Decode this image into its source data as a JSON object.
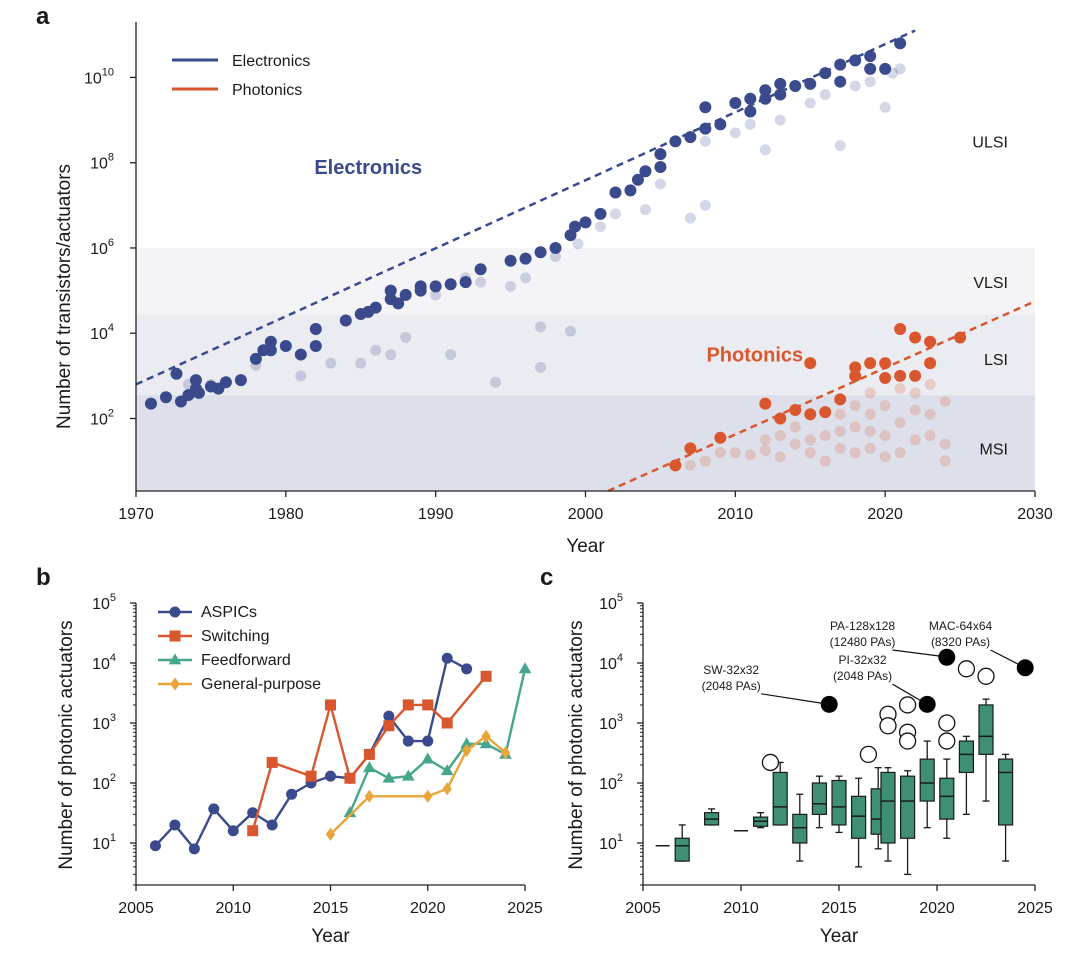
{
  "chart_data": [
    {
      "panel": "a",
      "type": "scatter",
      "xlabel": "Year",
      "ylabel": "Number of transistors/actuators",
      "xlim": [
        1970,
        2030
      ],
      "ylim_log10": [
        0.3,
        11.3
      ],
      "xticks": [
        "1970",
        "1980",
        "1990",
        "2000",
        "2010",
        "2020",
        "2030"
      ],
      "yticks": [
        {
          "exp": 2,
          "label": "2"
        },
        {
          "exp": 4,
          "label": "4"
        },
        {
          "exp": 6,
          "label": "6"
        },
        {
          "exp": 8,
          "label": "8"
        },
        {
          "exp": 10,
          "label": "10"
        }
      ],
      "ytick_base": "10",
      "legend": [
        "Electronics",
        "Photonics"
      ],
      "legend_position": "top-left",
      "colors": {
        "electronics": "#3a4a8c",
        "photonics": "#d9572e",
        "band_msi": "#dde0ea",
        "band_lsi": "#ebecf1",
        "band_vlsi": "#f4f4f6"
      },
      "bands": [
        {
          "name": "MSI",
          "ymin_log10": 0.3,
          "ymax_log10": 2.55
        },
        {
          "name": "LSI",
          "ymin_log10": 2.55,
          "ymax_log10": 4.45
        },
        {
          "name": "VLSI",
          "ymin_log10": 4.45,
          "ymax_log10": 6.0
        },
        {
          "name": "ULSI",
          "ymin_log10": 6.0,
          "ymax_log10": 11.3
        }
      ],
      "band_labels": [
        {
          "name": "ULSI",
          "y_log10": 8.5
        },
        {
          "name": "VLSI",
          "y_log10": 5.2
        },
        {
          "name": "LSI",
          "y_log10": 3.4
        },
        {
          "name": "MSI",
          "y_log10": 1.3
        }
      ],
      "series_labels": [
        {
          "text": "Electronics",
          "x": 1985.5,
          "y_log10": 7.9,
          "series": "electronics"
        },
        {
          "text": "Photonics",
          "x": 2011.3,
          "y_log10": 3.5,
          "series": "photonics"
        }
      ],
      "trend_electronics": {
        "x": [
          1970,
          2022
        ],
        "y_log10": [
          2.8,
          11.1
        ]
      },
      "trend_photonics": {
        "x": [
          2001.5,
          2030
        ],
        "y_log10": [
          0.3,
          4.75
        ]
      },
      "electronics_points": [
        [
          1971,
          2.35
        ],
        [
          1972,
          2.5
        ],
        [
          1972.7,
          3.05
        ],
        [
          1973,
          2.4
        ],
        [
          1973.5,
          2.55
        ],
        [
          1974,
          2.7
        ],
        [
          1974,
          2.9
        ],
        [
          1974.2,
          2.6
        ],
        [
          1975,
          2.75
        ],
        [
          1975.5,
          2.7
        ],
        [
          1976,
          2.85
        ],
        [
          1977,
          2.9
        ],
        [
          1978,
          3.4
        ],
        [
          1978.5,
          3.6
        ],
        [
          1979,
          3.8
        ],
        [
          1979,
          3.6
        ],
        [
          1980,
          3.7
        ],
        [
          1981,
          3.5
        ],
        [
          1982,
          3.7
        ],
        [
          1982,
          4.1
        ],
        [
          1984,
          4.3
        ],
        [
          1985,
          4.45
        ],
        [
          1985.5,
          4.5
        ],
        [
          1986,
          4.6
        ],
        [
          1987,
          4.8
        ],
        [
          1987,
          5.0
        ],
        [
          1987.5,
          4.7
        ],
        [
          1988,
          4.9
        ],
        [
          1989,
          5.1
        ],
        [
          1989,
          5.0
        ],
        [
          1990,
          5.1
        ],
        [
          1991,
          5.15
        ],
        [
          1992,
          5.2
        ],
        [
          1993,
          5.5
        ],
        [
          1995,
          5.7
        ],
        [
          1996,
          5.75
        ],
        [
          1997,
          5.9
        ],
        [
          1998,
          6.0
        ],
        [
          1999,
          6.3
        ],
        [
          1999.3,
          6.5
        ],
        [
          2000,
          6.6
        ],
        [
          2001,
          6.8
        ],
        [
          2002,
          7.3
        ],
        [
          2003,
          7.35
        ],
        [
          2003.5,
          7.6
        ],
        [
          2004,
          7.8
        ],
        [
          2005,
          8.2
        ],
        [
          2005,
          7.9
        ],
        [
          2006,
          8.5
        ],
        [
          2007,
          8.6
        ],
        [
          2008,
          8.8
        ],
        [
          2008,
          9.3
        ],
        [
          2009,
          8.9
        ],
        [
          2010,
          9.4
        ],
        [
          2011,
          9.5
        ],
        [
          2011,
          9.2
        ],
        [
          2012,
          9.5
        ],
        [
          2012,
          9.7
        ],
        [
          2013,
          9.6
        ],
        [
          2013,
          9.85
        ],
        [
          2014,
          9.8
        ],
        [
          2015,
          9.85
        ],
        [
          2016,
          10.1
        ],
        [
          2017,
          10.3
        ],
        [
          2017,
          9.9
        ],
        [
          2018,
          10.4
        ],
        [
          2019,
          10.5
        ],
        [
          2019,
          10.2
        ],
        [
          2020,
          10.2
        ],
        [
          2021,
          10.8
        ]
      ],
      "electronics_faint_points": [
        [
          1973.5,
          2.8
        ],
        [
          1975,
          2.8
        ],
        [
          1978,
          3.25
        ],
        [
          1981,
          3.0
        ],
        [
          1983,
          3.3
        ],
        [
          1985,
          3.3
        ],
        [
          1986,
          3.6
        ],
        [
          1987,
          3.5
        ],
        [
          1988,
          3.9
        ],
        [
          1990,
          4.9
        ],
        [
          1991,
          3.5
        ],
        [
          1992,
          5.3
        ],
        [
          1993,
          5.2
        ],
        [
          1994,
          2.85
        ],
        [
          1995,
          5.1
        ],
        [
          1996,
          5.3
        ],
        [
          1997,
          4.15
        ],
        [
          1997,
          3.2
        ],
        [
          1998,
          5.8
        ],
        [
          1999,
          4.05
        ],
        [
          1999.5,
          6.1
        ],
        [
          2001,
          6.5
        ],
        [
          2002,
          6.8
        ],
        [
          2004,
          6.9
        ],
        [
          2005,
          7.5
        ],
        [
          2007,
          6.7
        ],
        [
          2008,
          7.0
        ],
        [
          2008,
          8.5
        ],
        [
          2010,
          8.7
        ],
        [
          2011,
          8.9
        ],
        [
          2012,
          8.3
        ],
        [
          2013,
          9.0
        ],
        [
          2015,
          9.4
        ],
        [
          2016,
          9.6
        ],
        [
          2017,
          8.4
        ],
        [
          2018,
          9.8
        ],
        [
          2019,
          9.9
        ],
        [
          2020,
          9.3
        ],
        [
          2020.5,
          10.1
        ],
        [
          2021,
          10.2
        ]
      ],
      "photonics_points": [
        [
          2006,
          0.9
        ],
        [
          2007,
          1.3
        ],
        [
          2009,
          1.55
        ],
        [
          2012,
          2.35
        ],
        [
          2013,
          2.0
        ],
        [
          2014,
          2.2
        ],
        [
          2015,
          2.1
        ],
        [
          2015,
          3.3
        ],
        [
          2016,
          2.15
        ],
        [
          2017,
          2.45
        ],
        [
          2018,
          3.0
        ],
        [
          2018,
          3.2
        ],
        [
          2019,
          3.3
        ],
        [
          2020,
          3.3
        ],
        [
          2020,
          2.95
        ],
        [
          2021,
          3.0
        ],
        [
          2021,
          4.1
        ],
        [
          2022,
          3.9
        ],
        [
          2022,
          3.0
        ],
        [
          2023,
          3.8
        ],
        [
          2023,
          3.3
        ],
        [
          2025,
          3.9
        ]
      ],
      "photonics_faint_points": [
        [
          2007,
          0.9
        ],
        [
          2008,
          1.0
        ],
        [
          2009,
          1.2
        ],
        [
          2010,
          1.2
        ],
        [
          2011,
          1.15
        ],
        [
          2012,
          1.25
        ],
        [
          2012,
          1.5
        ],
        [
          2013,
          1.1
        ],
        [
          2013,
          1.6
        ],
        [
          2014,
          1.4
        ],
        [
          2014,
          1.8
        ],
        [
          2015,
          1.5
        ],
        [
          2015,
          1.2
        ],
        [
          2016,
          1.0
        ],
        [
          2016,
          1.6
        ],
        [
          2017,
          1.3
        ],
        [
          2017,
          1.7
        ],
        [
          2017,
          2.1
        ],
        [
          2018,
          1.2
        ],
        [
          2018,
          1.8
        ],
        [
          2018,
          2.3
        ],
        [
          2019,
          1.3
        ],
        [
          2019,
          1.7
        ],
        [
          2019,
          2.1
        ],
        [
          2019,
          2.6
        ],
        [
          2020,
          1.1
        ],
        [
          2020,
          1.6
        ],
        [
          2020,
          2.3
        ],
        [
          2021,
          1.2
        ],
        [
          2021,
          1.9
        ],
        [
          2021,
          2.7
        ],
        [
          2022,
          1.5
        ],
        [
          2022,
          2.2
        ],
        [
          2022,
          2.6
        ],
        [
          2023,
          1.6
        ],
        [
          2023,
          2.1
        ],
        [
          2023,
          2.8
        ],
        [
          2024,
          1.0
        ],
        [
          2024,
          1.4
        ],
        [
          2024,
          2.4
        ]
      ]
    },
    {
      "panel": "b",
      "type": "line",
      "xlabel": "Year",
      "ylabel": "Number of photonic actuators",
      "xlim": [
        2005,
        2025
      ],
      "ylim_log10": [
        0.3,
        5
      ],
      "xticks": [
        "2005",
        "2010",
        "2015",
        "2020",
        "2025"
      ],
      "yticks": [
        {
          "exp": 1,
          "label": "1"
        },
        {
          "exp": 2,
          "label": "2"
        },
        {
          "exp": 3,
          "label": "3"
        },
        {
          "exp": 4,
          "label": "4"
        },
        {
          "exp": 5,
          "label": "5"
        }
      ],
      "ytick_base": "10",
      "legend_position": "top-left",
      "series": [
        {
          "name": "ASPICs",
          "color": "#3a4a8c",
          "marker": "circle",
          "x": [
            2006,
            2007,
            2008,
            2009,
            2010,
            2011,
            2012,
            2013,
            2014,
            2015,
            2016,
            2017,
            2018,
            2019,
            2020,
            2021,
            2022
          ],
          "y": [
            9,
            20,
            8,
            37,
            16,
            32,
            20,
            65,
            100,
            130,
            120,
            300,
            1300,
            500,
            500,
            12000,
            8000
          ]
        },
        {
          "name": "Switching",
          "color": "#d9572e",
          "marker": "square",
          "x": [
            2011,
            2012,
            2014,
            2015,
            2016,
            2017,
            2018,
            2019,
            2020,
            2021,
            2023
          ],
          "y": [
            16,
            220,
            130,
            2000,
            120,
            300,
            900,
            2000,
            2000,
            1000,
            6000
          ]
        },
        {
          "name": "Feedforward",
          "color": "#46a68c",
          "marker": "triangle",
          "x": [
            2016,
            2017,
            2018,
            2019,
            2020,
            2021,
            2022,
            2023,
            2024,
            2025
          ],
          "y": [
            32,
            180,
            120,
            130,
            250,
            160,
            450,
            450,
            300,
            8000
          ]
        },
        {
          "name": "General-purpose",
          "color": "#e9a53a",
          "marker": "diamond",
          "x": [
            2015,
            2017,
            2020,
            2021,
            2022,
            2023,
            2024
          ],
          "y": [
            14,
            60,
            60,
            80,
            350,
            600,
            320
          ]
        }
      ]
    },
    {
      "panel": "c",
      "type": "box",
      "xlabel": "Year",
      "ylabel": "Number of photonic actuators",
      "xlim": [
        2005,
        2025
      ],
      "ylim_log10": [
        0.3,
        5
      ],
      "xticks": [
        "2005",
        "2010",
        "2015",
        "2020",
        "2025"
      ],
      "yticks": [
        {
          "exp": 1,
          "label": "1"
        },
        {
          "exp": 2,
          "label": "2"
        },
        {
          "exp": 3,
          "label": "3"
        },
        {
          "exp": 4,
          "label": "4"
        },
        {
          "exp": 5,
          "label": "5"
        }
      ],
      "ytick_base": "10",
      "colors": {
        "box": "#3f8f77",
        "edge": "#1a1a1a"
      },
      "boxes": [
        {
          "x": 2006,
          "min": 9,
          "q1": 9,
          "med": 9,
          "q3": 9,
          "max": 9
        },
        {
          "x": 2007,
          "min": 5,
          "q1": 5,
          "med": 9,
          "q3": 12,
          "max": 20
        },
        {
          "x": 2008.5,
          "min": 20,
          "q1": 20,
          "med": 25,
          "q3": 32,
          "max": 37
        },
        {
          "x": 2010,
          "min": 16,
          "q1": 16,
          "med": 16,
          "q3": 16,
          "max": 16
        },
        {
          "x": 2011,
          "min": 18,
          "q1": 19,
          "med": 23,
          "q3": 27,
          "max": 32
        },
        {
          "x": 2012,
          "min": 20,
          "q1": 20,
          "med": 40,
          "q3": 150,
          "max": 220
        },
        {
          "x": 2013,
          "min": 5,
          "q1": 10,
          "med": 18,
          "q3": 30,
          "max": 65
        },
        {
          "x": 2014,
          "min": 18,
          "q1": 30,
          "med": 45,
          "q3": 100,
          "max": 130
        },
        {
          "x": 2015,
          "min": 15,
          "q1": 20,
          "med": 40,
          "q3": 110,
          "max": 130
        },
        {
          "x": 2016,
          "min": 4,
          "q1": 12,
          "med": 28,
          "q3": 60,
          "max": 120
        },
        {
          "x": 2017,
          "min": 8,
          "q1": 14,
          "med": 25,
          "q3": 80,
          "max": 180
        },
        {
          "x": 2017.5,
          "min": 5,
          "q1": 10,
          "med": 50,
          "q3": 150,
          "max": 180
        },
        {
          "x": 2018.5,
          "min": 3,
          "q1": 12,
          "med": 50,
          "q3": 130,
          "max": 160
        },
        {
          "x": 2019.5,
          "min": 18,
          "q1": 50,
          "med": 100,
          "q3": 250,
          "max": 500
        },
        {
          "x": 2020.5,
          "min": 12,
          "q1": 25,
          "med": 60,
          "q3": 120,
          "max": 250
        },
        {
          "x": 2021.5,
          "min": 30,
          "q1": 150,
          "med": 300,
          "q3": 500,
          "max": 600
        },
        {
          "x": 2022.5,
          "min": 50,
          "q1": 300,
          "med": 600,
          "q3": 2000,
          "max": 2500
        },
        {
          "x": 2023.5,
          "min": 5,
          "q1": 20,
          "med": 150,
          "q3": 250,
          "max": 300
        }
      ],
      "outliers_open": [
        [
          2011.5,
          220
        ],
        [
          2016.5,
          300
        ],
        [
          2017.5,
          1400
        ],
        [
          2017.5,
          900
        ],
        [
          2018.5,
          2000
        ],
        [
          2018.5,
          700
        ],
        [
          2018.5,
          500
        ],
        [
          2020.5,
          1000
        ],
        [
          2020.5,
          500
        ],
        [
          2021.5,
          8000
        ],
        [
          2022.5,
          6000
        ]
      ],
      "outliers_filled": [
        {
          "x": 2014.5,
          "y": 2048
        },
        {
          "x": 2019.5,
          "y": 2048
        },
        {
          "x": 2020.5,
          "y": 12480
        },
        {
          "x": 2024.5,
          "y": 8320
        }
      ],
      "annotations": [
        {
          "line1": "SW-32x32",
          "line2": "(2048 PAs)",
          "text_x": 2009.5,
          "text_y_log10": 3.82,
          "point_x": 2014.5,
          "point_y_log10": 3.31
        },
        {
          "line1": "PA-128x128",
          "line2": "(12480 PAs)",
          "text_x": 2016.2,
          "text_y_log10": 4.55,
          "point_x": 2020.5,
          "point_y_log10": 4.1
        },
        {
          "line1": "PI-32x32",
          "line2": "(2048 PAs)",
          "text_x": 2016.2,
          "text_y_log10": 3.98,
          "point_x": 2019.5,
          "point_y_log10": 3.31
        },
        {
          "line1": "MAC-64x64",
          "line2": "(8320 PAs)",
          "text_x": 2021.2,
          "text_y_log10": 4.55,
          "point_x": 2024.5,
          "point_y_log10": 3.92
        }
      ]
    }
  ]
}
